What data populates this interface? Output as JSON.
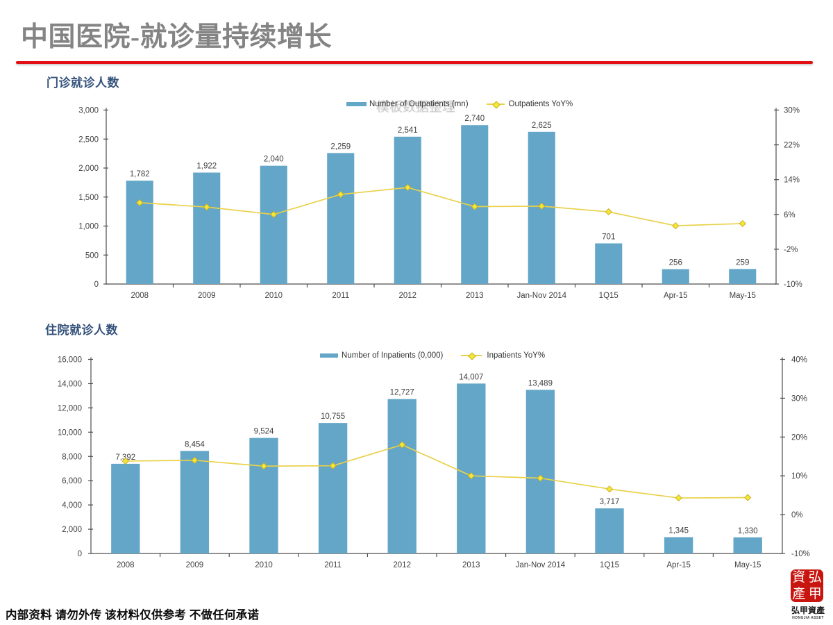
{
  "slide": {
    "title": "中国医院-就诊量持续增长",
    "title_color": "#868686",
    "rule_color": "#e21014",
    "background": "#ffffff",
    "watermark": "模板数据整理",
    "footer": "内部资料 请勿外传 该材料仅供参考 不做任何承诺"
  },
  "logo": {
    "seal_chars": [
      "資",
      "弘",
      "產",
      "甲"
    ],
    "seal_color": "#c8150f",
    "name_cn": "弘甲資產",
    "name_en": "HONGJIA ASSET"
  },
  "colors": {
    "bar": "#63a6c7",
    "line": "#e9d14a",
    "marker": "#f2e838",
    "marker_border": "#cfae24",
    "axis": "#4d4d4d",
    "text": "#3f3f3f"
  },
  "chart_data": [
    {
      "type": "bar",
      "section_label": "门诊就诊人数",
      "title": "",
      "categories": [
        "2008",
        "2009",
        "2010",
        "2011",
        "2012",
        "2013",
        "Jan-Nov 2014",
        "1Q15",
        "Apr-15",
        "May-15"
      ],
      "series": [
        {
          "name": "Number of Outpatients (mn)",
          "type": "bar",
          "axis": "left",
          "values": [
            1782,
            1922,
            2040,
            2259,
            2541,
            2740,
            2625,
            701,
            256,
            259
          ]
        },
        {
          "name": "Outpatients YoY%",
          "type": "line",
          "axis": "right",
          "values": [
            8.7,
            7.7,
            6.0,
            10.6,
            12.2,
            7.8,
            7.9,
            6.6,
            3.4,
            3.9
          ]
        }
      ],
      "y_left": {
        "min": 0,
        "max": 3000,
        "step": 500
      },
      "y_right": {
        "min": -10,
        "max": 30,
        "step": 8,
        "suffix": "%"
      },
      "grid": false,
      "legend_position": "top-center",
      "data_labels": true
    },
    {
      "type": "bar",
      "section_label": "住院就诊人数",
      "title": "",
      "categories": [
        "2008",
        "2009",
        "2010",
        "2011",
        "2012",
        "2013",
        "Jan-Nov 2014",
        "1Q15",
        "Apr-15",
        "May-15"
      ],
      "series": [
        {
          "name": "Number of Inpatients (0,000)",
          "type": "bar",
          "axis": "left",
          "values": [
            7392,
            8454,
            9524,
            10755,
            12727,
            14007,
            13489,
            3717,
            1345,
            1330
          ]
        },
        {
          "name": "Inpatients YoY%",
          "type": "line",
          "axis": "right",
          "values": [
            13.8,
            14.0,
            12.5,
            12.6,
            18.0,
            10.0,
            9.4,
            6.6,
            4.3,
            4.4
          ]
        }
      ],
      "y_left": {
        "min": 0,
        "max": 16000,
        "step": 2000
      },
      "y_right": {
        "min": -10,
        "max": 40,
        "step": 10,
        "suffix": "%"
      },
      "grid": false,
      "legend_position": "top-center",
      "data_labels": true
    }
  ]
}
